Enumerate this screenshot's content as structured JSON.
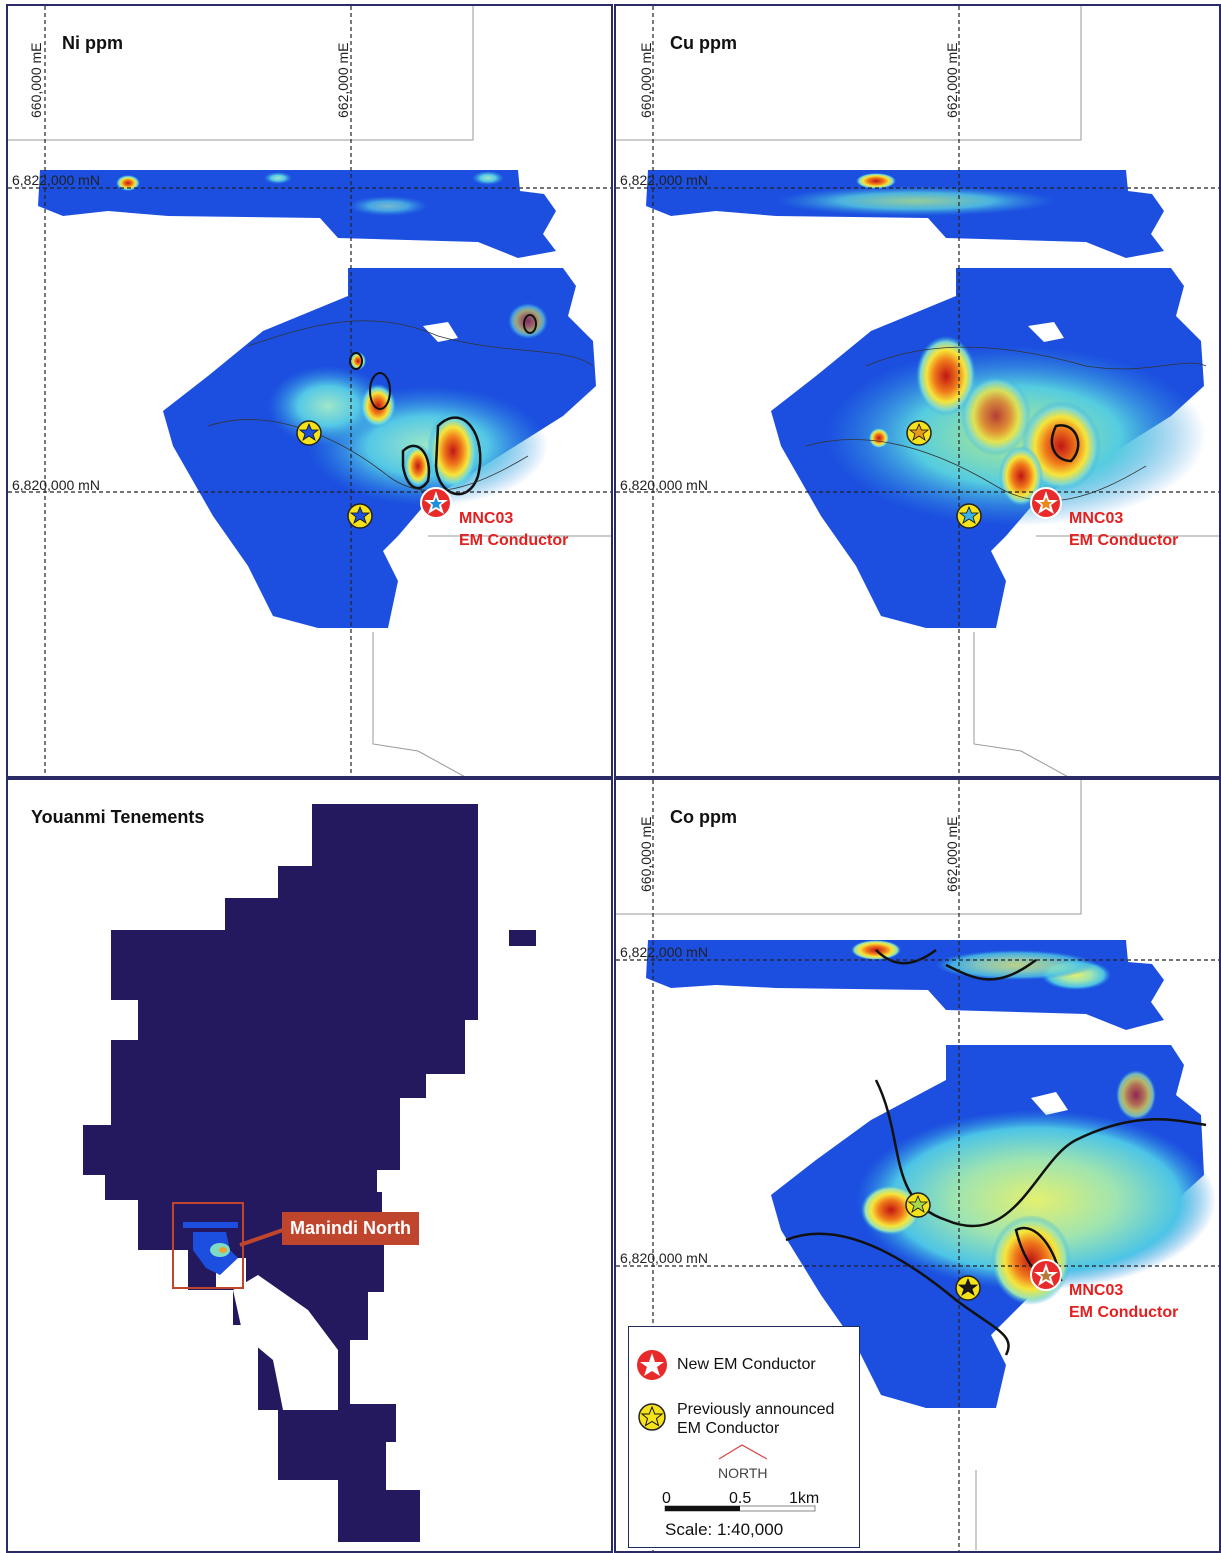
{
  "panels": {
    "ni": {
      "title": "Ni ppm",
      "easting_1": "660,000 mE",
      "easting_2": "662,000 mE",
      "northing_1": "6,822,000 mN",
      "northing_2": "6,820,000 mN",
      "conductor_name": "MNC03",
      "conductor_type": "EM Conductor"
    },
    "cu": {
      "title": "Cu ppm",
      "easting_1": "660,000 mE",
      "easting_2": "662,000 mE",
      "northing_1": "6,822,000 mN",
      "northing_2": "6,820,000 mN",
      "conductor_name": "MNC03",
      "conductor_type": "EM Conductor"
    },
    "co": {
      "title": "Co ppm",
      "easting_1": "660,000 mE",
      "easting_2": "662,000 mE",
      "northing_1": "6,822,000 mN",
      "northing_2": "6,820,000 mN",
      "conductor_name": "MNC03",
      "conductor_type": "EM Conductor"
    },
    "tenements": {
      "title": "Youanmi Tenements",
      "callout": "Manindi North",
      "fill_color": "#24195f",
      "callout_color": "#c0452d"
    }
  },
  "legend": {
    "new_conductor": "New EM Conductor",
    "previous_conductor_line1": "Previously announced",
    "previous_conductor_line2": "EM Conductor",
    "north": "NORTH",
    "scale_0": "0",
    "scale_mid": "0.5",
    "scale_end": "1km",
    "scale_text": "Scale: 1:40,000"
  },
  "colors": {
    "new_conductor": "#e82a2a",
    "previous_conductor": "#f5e21a",
    "frame": "#2a2a66",
    "label_red": "#e41f1f"
  }
}
